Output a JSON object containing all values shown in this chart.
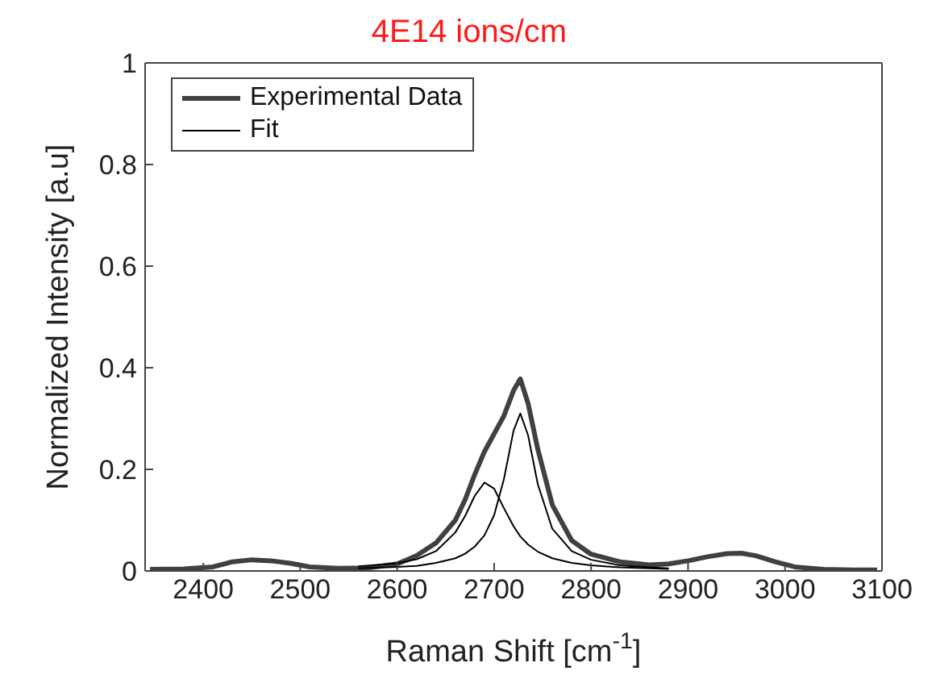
{
  "chart_data": {
    "type": "line",
    "title": "4E14 ions/cm",
    "xlabel": "Raman Shift [cm$^{-1}$]",
    "ylabel": "Normalized Intensity [a.u]",
    "xlim": [
      2340,
      3100
    ],
    "xticks": [
      2400,
      2500,
      2600,
      2700,
      2800,
      2900,
      3000,
      3100
    ],
    "ylim": [
      0,
      1
    ],
    "yticks": [
      0,
      0.2,
      0.4,
      0.6,
      0.8,
      1
    ],
    "legend": "top left",
    "marker": "none",
    "line_style": "solid",
    "series": [
      {
        "name": "Experimental Data",
        "color": "#404040",
        "x": [
          2345,
          2380,
          2410,
          2430,
          2450,
          2470,
          2490,
          2510,
          2540,
          2570,
          2600,
          2620,
          2640,
          2660,
          2670,
          2680,
          2690,
          2700,
          2710,
          2720,
          2727,
          2735,
          2745,
          2760,
          2780,
          2800,
          2830,
          2860,
          2880,
          2900,
          2920,
          2940,
          2955,
          2970,
          2990,
          3010,
          3040,
          3070,
          3095
        ],
        "values": [
          0.003,
          0.004,
          0.008,
          0.018,
          0.022,
          0.02,
          0.015,
          0.008,
          0.005,
          0.006,
          0.014,
          0.03,
          0.055,
          0.1,
          0.14,
          0.19,
          0.235,
          0.27,
          0.305,
          0.355,
          0.378,
          0.33,
          0.24,
          0.13,
          0.06,
          0.033,
          0.018,
          0.012,
          0.014,
          0.02,
          0.028,
          0.034,
          0.035,
          0.03,
          0.018,
          0.008,
          0.003,
          0.002,
          0.002
        ]
      },
      {
        "name": "Fit",
        "color": "#000000",
        "x": [
          2560,
          2600,
          2620,
          2640,
          2660,
          2670,
          2680,
          2690,
          2700,
          2710,
          2720,
          2727,
          2735,
          2745,
          2760,
          2780,
          2800,
          2830,
          2860,
          2880
        ],
        "values": [
          0.005,
          0.008,
          0.01,
          0.016,
          0.025,
          0.034,
          0.048,
          0.07,
          0.11,
          0.18,
          0.276,
          0.31,
          0.267,
          0.171,
          0.083,
          0.039,
          0.022,
          0.011,
          0.007,
          0.005
        ]
      },
      {
        "color": "#000000",
        "x": [
          2560,
          2600,
          2620,
          2640,
          2660,
          2670,
          2680,
          2690,
          2700,
          2710,
          2720,
          2727,
          2735,
          2745,
          2760,
          2780,
          2800,
          2830,
          2860,
          2880
        ],
        "values": [
          0.009,
          0.015,
          0.023,
          0.039,
          0.076,
          0.108,
          0.148,
          0.174,
          0.162,
          0.124,
          0.088,
          0.068,
          0.052,
          0.038,
          0.025,
          0.016,
          0.011,
          0.007,
          0.005,
          0.004
        ]
      }
    ]
  }
}
